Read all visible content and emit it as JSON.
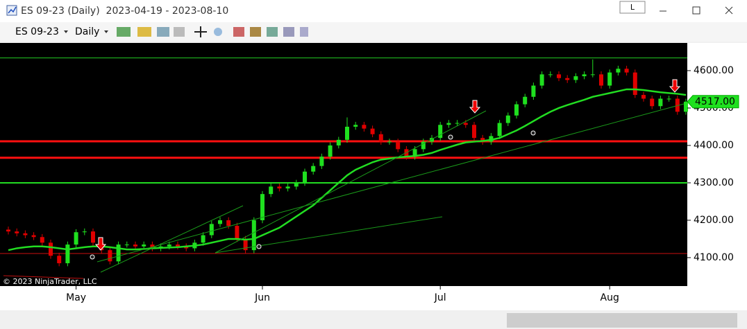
{
  "window": {
    "title": "ES 09-23 (Daily)  2023-04-19 - 2023-08-10",
    "badge": "L"
  },
  "toolbar": {
    "instrument": "ES 09-23",
    "interval": "Daily"
  },
  "chart_data": {
    "type": "candlestick",
    "copyright": "© 2023 NinjaTrader, LLC",
    "up_color": "#1fe01f",
    "down_color": "#e00000",
    "ma_color": "#22dd22",
    "ylim": [
      4024,
      4674
    ],
    "yticks": [
      {
        "value": 4100,
        "label": "4100.00"
      },
      {
        "value": 4200,
        "label": "4200.00"
      },
      {
        "value": 4300,
        "label": "4300.00"
      },
      {
        "value": 4400,
        "label": "4400.00"
      },
      {
        "value": 4500,
        "label": "4500.00"
      },
      {
        "value": 4600,
        "label": "4600.00"
      }
    ],
    "xticks": [
      {
        "value": 8,
        "label": "May"
      },
      {
        "value": 30,
        "label": "Jun"
      },
      {
        "value": 51,
        "label": "Jul"
      },
      {
        "value": 71,
        "label": "Aug"
      }
    ],
    "last_price": {
      "value": 4517,
      "label": "4517.00"
    },
    "levels": [
      {
        "price": 4634,
        "color": "#22cc22",
        "width": 1
      },
      {
        "price": 4411,
        "color": "#ff1010",
        "width": 3
      },
      {
        "price": 4367,
        "color": "#ff1010",
        "width": 3
      },
      {
        "price": 4300,
        "color": "#22dd22",
        "width": 2
      },
      {
        "price": 4111,
        "color": "#cc1010",
        "width": 1
      }
    ],
    "candles": [
      [
        4175,
        4183,
        4162,
        4170
      ],
      [
        4170,
        4178,
        4157,
        4165
      ],
      [
        4165,
        4173,
        4152,
        4160
      ],
      [
        4160,
        4168,
        4147,
        4155
      ],
      [
        4155,
        4163,
        4132,
        4140
      ],
      [
        4140,
        4148,
        4097,
        4105
      ],
      [
        4105,
        4113,
        4077,
        4085
      ],
      [
        4085,
        4143,
        4077,
        4135
      ],
      [
        4135,
        4176,
        4127,
        4168
      ],
      [
        4168,
        4178,
        4160,
        4170
      ],
      [
        4170,
        4178,
        4132,
        4140
      ],
      [
        4140,
        4148,
        4112,
        4120
      ],
      [
        4120,
        4128,
        4082,
        4090
      ],
      [
        4090,
        4143,
        4082,
        4135
      ],
      [
        4135,
        4143,
        4127,
        4135
      ],
      [
        4135,
        4143,
        4122,
        4130
      ],
      [
        4130,
        4143,
        4122,
        4135
      ],
      [
        4135,
        4143,
        4117,
        4125
      ],
      [
        4125,
        4138,
        4117,
        4130
      ],
      [
        4130,
        4143,
        4122,
        4135
      ],
      [
        4135,
        4143,
        4122,
        4130
      ],
      [
        4130,
        4138,
        4117,
        4125
      ],
      [
        4125,
        4148,
        4117,
        4140
      ],
      [
        4140,
        4168,
        4132,
        4160
      ],
      [
        4160,
        4198,
        4152,
        4190
      ],
      [
        4190,
        4208,
        4182,
        4200
      ],
      [
        4200,
        4208,
        4177,
        4185
      ],
      [
        4185,
        4193,
        4142,
        4150
      ],
      [
        4150,
        4158,
        4112,
        4120
      ],
      [
        4120,
        4208,
        4112,
        4200
      ],
      [
        4200,
        4278,
        4192,
        4270
      ],
      [
        4270,
        4298,
        4262,
        4290
      ],
      [
        4290,
        4298,
        4277,
        4285
      ],
      [
        4285,
        4298,
        4277,
        4290
      ],
      [
        4290,
        4308,
        4282,
        4300
      ],
      [
        4300,
        4338,
        4292,
        4330
      ],
      [
        4330,
        4353,
        4322,
        4345
      ],
      [
        4345,
        4378,
        4337,
        4370
      ],
      [
        4370,
        4408,
        4362,
        4400
      ],
      [
        4400,
        4423,
        4392,
        4415
      ],
      [
        4415,
        4475,
        4407,
        4450
      ],
      [
        4450,
        4463,
        4442,
        4455
      ],
      [
        4455,
        4463,
        4437,
        4445
      ],
      [
        4445,
        4453,
        4422,
        4430
      ],
      [
        4430,
        4438,
        4402,
        4410
      ],
      [
        4410,
        4418,
        4402,
        4410
      ],
      [
        4410,
        4418,
        4382,
        4390
      ],
      [
        4390,
        4398,
        4362,
        4370
      ],
      [
        4370,
        4398,
        4362,
        4390
      ],
      [
        4390,
        4418,
        4382,
        4410
      ],
      [
        4410,
        4428,
        4402,
        4420
      ],
      [
        4420,
        4463,
        4412,
        4455
      ],
      [
        4455,
        4468,
        4447,
        4460
      ],
      [
        4460,
        4468,
        4452,
        4460
      ],
      [
        4460,
        4468,
        4447,
        4455
      ],
      [
        4455,
        4463,
        4412,
        4420
      ],
      [
        4420,
        4428,
        4402,
        4410
      ],
      [
        4410,
        4433,
        4402,
        4425
      ],
      [
        4425,
        4468,
        4417,
        4460
      ],
      [
        4460,
        4488,
        4452,
        4480
      ],
      [
        4480,
        4518,
        4472,
        4510
      ],
      [
        4510,
        4538,
        4502,
        4530
      ],
      [
        4530,
        4568,
        4522,
        4560
      ],
      [
        4560,
        4598,
        4552,
        4590
      ],
      [
        4590,
        4598,
        4582,
        4590
      ],
      [
        4590,
        4598,
        4572,
        4580
      ],
      [
        4580,
        4588,
        4567,
        4575
      ],
      [
        4575,
        4593,
        4567,
        4585
      ],
      [
        4585,
        4598,
        4577,
        4590
      ],
      [
        4590,
        4630,
        4582,
        4590
      ],
      [
        4590,
        4598,
        4552,
        4560
      ],
      [
        4560,
        4603,
        4552,
        4595
      ],
      [
        4595,
        4613,
        4587,
        4605
      ],
      [
        4605,
        4613,
        4587,
        4595
      ],
      [
        4595,
        4603,
        4527,
        4535
      ],
      [
        4535,
        4543,
        4517,
        4525
      ],
      [
        4525,
        4533,
        4497,
        4505
      ],
      [
        4505,
        4533,
        4497,
        4525
      ],
      [
        4525,
        4533,
        4517,
        4525
      ],
      [
        4525,
        4533,
        4482,
        4490
      ],
      [
        4490,
        4525,
        4482,
        4517
      ]
    ],
    "ma": [
      4120,
      4125,
      4128,
      4130,
      4130,
      4128,
      4125,
      4122,
      4125,
      4128,
      4130,
      4130,
      4128,
      4125,
      4122,
      4122,
      4123,
      4125,
      4126,
      4127,
      4128,
      4130,
      4132,
      4135,
      4140,
      4145,
      4150,
      4150,
      4148,
      4150,
      4160,
      4170,
      4180,
      4195,
      4210,
      4225,
      4240,
      4260,
      4280,
      4300,
      4320,
      4335,
      4345,
      4355,
      4362,
      4365,
      4368,
      4370,
      4372,
      4375,
      4380,
      4388,
      4395,
      4402,
      4408,
      4410,
      4412,
      4415,
      4420,
      4430,
      4440,
      4452,
      4465,
      4478,
      4490,
      4500,
      4508,
      4515,
      4522,
      4530,
      4535,
      4540,
      4545,
      4550,
      4550,
      4548,
      4545,
      4542,
      4540,
      4538,
      4535
    ]
  }
}
